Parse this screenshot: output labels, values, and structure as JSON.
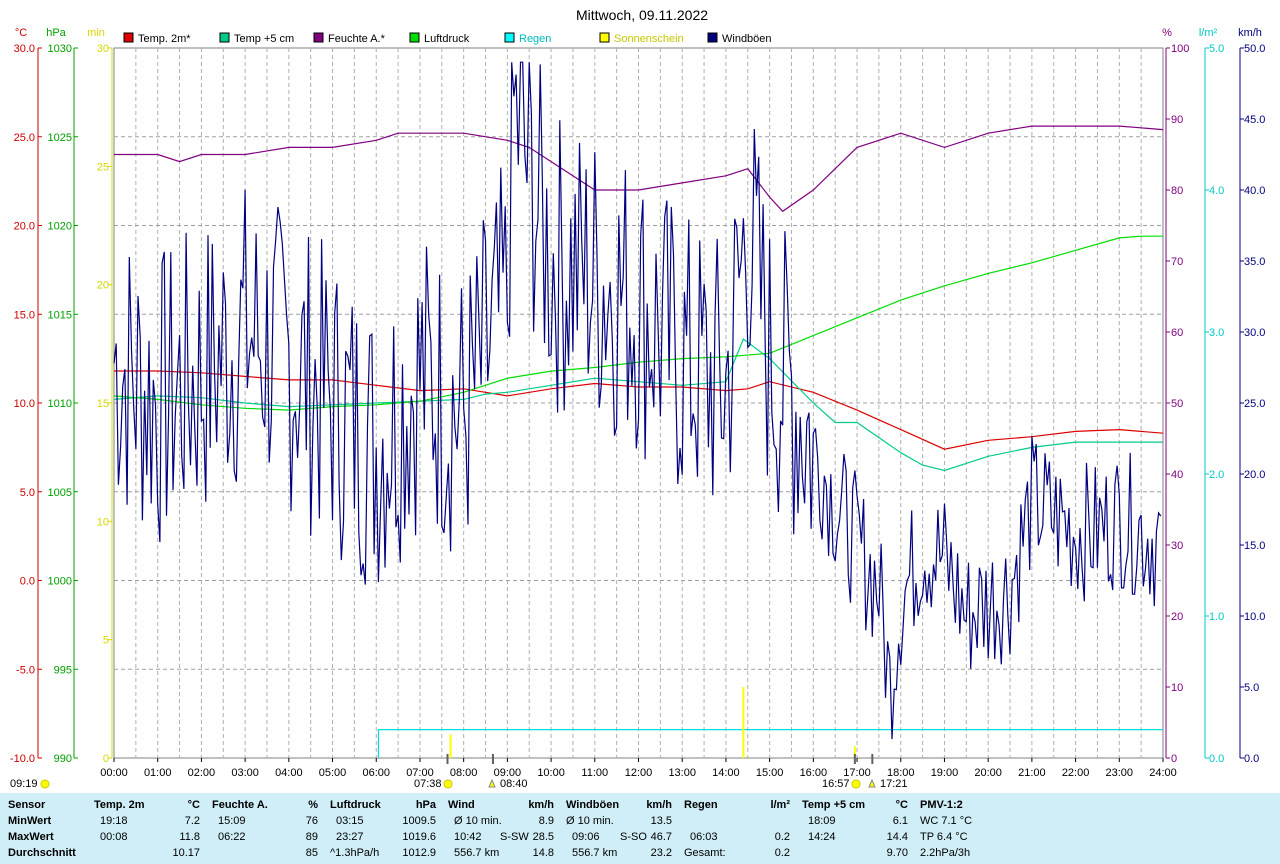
{
  "title": "Mittwoch, 09.11.2022",
  "chart_data": {
    "type": "line",
    "x_ticks": [
      "00:00",
      "01:00",
      "02:00",
      "03:00",
      "04:00",
      "05:00",
      "06:00",
      "07:00",
      "08:00",
      "09:00",
      "10:00",
      "11:00",
      "12:00",
      "13:00",
      "14:00",
      "15:00",
      "16:00",
      "17:00",
      "18:00",
      "19:00",
      "20:00",
      "21:00",
      "22:00",
      "23:00",
      "24:00"
    ],
    "axes": {
      "temp": {
        "label": "°C",
        "color": "#cc0000",
        "ticks": [
          "30.0",
          "25.0",
          "20.0",
          "15.0",
          "10.0",
          "5.0",
          "0.0",
          "-5.0",
          "-10.0"
        ],
        "range": [
          -10,
          30
        ]
      },
      "pressure": {
        "label": "hPa",
        "color": "#00a000",
        "ticks": [
          "1030",
          "1025",
          "1020",
          "1015",
          "1010",
          "1005",
          "1000",
          "995",
          "990"
        ],
        "range": [
          990,
          1030
        ]
      },
      "sunshine": {
        "label": "min",
        "color": "#d8d800",
        "ticks": [
          "30",
          "25",
          "20",
          "15",
          "10",
          "5",
          "0"
        ],
        "range": [
          0,
          30
        ]
      },
      "humidity": {
        "label": "%",
        "color": "#800080",
        "ticks": [
          "100",
          "90",
          "80",
          "70",
          "60",
          "50",
          "40",
          "30",
          "20",
          "10",
          "0"
        ],
        "range": [
          0,
          100
        ]
      },
      "rain": {
        "label": "l/m²",
        "color": "#00c8c8",
        "ticks": [
          "5.0",
          "4.0",
          "3.0",
          "2.0",
          "1.0",
          "0.0"
        ],
        "range": [
          0,
          5
        ]
      },
      "wind": {
        "label": "km/h",
        "color": "#000080",
        "ticks": [
          "50.0",
          "45.0",
          "40.0",
          "35.0",
          "30.0",
          "25.0",
          "20.0",
          "15.0",
          "10.0",
          "5.0",
          "0.0"
        ],
        "range": [
          0,
          50
        ]
      }
    },
    "legend": [
      {
        "label": "Temp. 2m*",
        "color": "#dd0000"
      },
      {
        "label": "Temp +5 cm",
        "color": "#00cc88"
      },
      {
        "label": "Feuchte A.*",
        "color": "#800080"
      },
      {
        "label": "Luftdruck",
        "color": "#00dd00"
      },
      {
        "label": "Regen",
        "color": "#00ffff"
      },
      {
        "label": "Sonnenschein",
        "color": "#ffff00"
      },
      {
        "label": "Windböen",
        "color": "#000080"
      }
    ],
    "series": [
      {
        "name": "Temp. 2m*",
        "axis": "temp",
        "color": "#dd0000",
        "x": [
          0,
          1,
          2,
          3,
          4,
          5,
          6,
          7,
          8,
          9,
          10,
          11,
          12,
          13,
          14,
          14.5,
          15,
          16,
          17,
          18,
          19,
          20,
          21,
          22,
          23,
          24
        ],
        "values": [
          11.8,
          11.8,
          11.7,
          11.5,
          11.3,
          11.3,
          11.0,
          10.7,
          10.8,
          10.4,
          10.8,
          11.1,
          10.9,
          10.9,
          10.7,
          10.8,
          11.2,
          10.6,
          9.6,
          8.5,
          7.4,
          7.9,
          8.1,
          8.4,
          8.5,
          8.3
        ]
      },
      {
        "name": "Temp +5 cm",
        "axis": "temp",
        "color": "#00cc88",
        "x": [
          0,
          1,
          2,
          3,
          4,
          5,
          6,
          7,
          8,
          8.5,
          9,
          10,
          11,
          12,
          13,
          14,
          14.4,
          15,
          16,
          16.5,
          17,
          18,
          18.5,
          19,
          20,
          21,
          22,
          23,
          24
        ],
        "values": [
          10.2,
          10.4,
          10.3,
          10.0,
          9.8,
          9.9,
          10.0,
          10.1,
          10.2,
          10.5,
          10.6,
          11.0,
          11.4,
          11.2,
          11.0,
          11.2,
          13.6,
          12.5,
          10.0,
          8.9,
          8.9,
          7.2,
          6.5,
          6.2,
          7.0,
          7.5,
          7.8,
          7.8,
          7.8
        ]
      },
      {
        "name": "Feuchte A.*",
        "axis": "humidity",
        "color": "#800080",
        "x": [
          0,
          1,
          1.5,
          2,
          3,
          4,
          5,
          6,
          6.5,
          7,
          8,
          9,
          9.5,
          10,
          11,
          12,
          13,
          14,
          14.5,
          15,
          15.3,
          16,
          17,
          18,
          19,
          20,
          21,
          22,
          23,
          24
        ],
        "values": [
          85,
          85,
          84,
          85,
          85,
          86,
          86,
          87,
          88,
          88,
          88,
          87,
          86,
          84,
          80,
          80,
          81,
          82,
          83,
          79,
          77,
          80,
          86,
          88,
          86,
          88,
          89,
          89,
          89,
          88.5
        ]
      },
      {
        "name": "Luftdruck",
        "axis": "pressure",
        "color": "#00dd00",
        "x": [
          0,
          1,
          2,
          3,
          4,
          5,
          6,
          7,
          8,
          9,
          10,
          11,
          12,
          13,
          14,
          15,
          16,
          17,
          18,
          19,
          20,
          21,
          22,
          23,
          23.5,
          24
        ],
        "values": [
          1010.4,
          1010.2,
          1009.9,
          1009.7,
          1009.6,
          1009.8,
          1009.9,
          1010.1,
          1010.6,
          1011.4,
          1011.8,
          1012.0,
          1012.3,
          1012.5,
          1012.6,
          1012.8,
          1013.8,
          1014.8,
          1015.8,
          1016.6,
          1017.3,
          1017.9,
          1018.6,
          1019.3,
          1019.4,
          1019.4
        ]
      },
      {
        "name": "Windböen",
        "axis": "wind",
        "color": "#000080",
        "x": [
          0,
          1,
          2,
          3,
          4,
          5,
          6,
          7,
          8,
          9,
          9.1,
          10,
          11,
          12,
          13,
          14,
          14.5,
          15,
          15.5,
          16,
          16.5,
          17,
          17.5,
          17.75,
          18,
          18.5,
          19,
          19.5,
          20,
          20.5,
          21,
          21.5,
          22,
          22.5,
          23,
          23.5,
          24
        ],
        "values": [
          28,
          25,
          27,
          30,
          28,
          25,
          22,
          27,
          24,
          32,
          46,
          35,
          34,
          32,
          28,
          26,
          38,
          28,
          26,
          22,
          18,
          15,
          12,
          5,
          11,
          15,
          14,
          10,
          11,
          12,
          18,
          17,
          16,
          16,
          17,
          16,
          15
        ]
      }
    ],
    "rain_events": [
      {
        "time": "06:03",
        "value": "0.2"
      }
    ],
    "markers": [
      {
        "label": "09:19",
        "symbol": "sun"
      },
      {
        "label": "07:38",
        "symbol": "sun"
      },
      {
        "label": "08:40",
        "symbol": "moon"
      },
      {
        "label": "16:57",
        "symbol": "sun"
      },
      {
        "label": "17:21",
        "symbol": "moon"
      }
    ]
  },
  "stats": {
    "rows": {
      "row1": "Sensor",
      "row2": "MinWert",
      "row3": "MaxWert",
      "row4": "Durchschnitt"
    },
    "temp2m": {
      "h1": "Temp. 2m",
      "h2": "°C",
      "min_t": "19:18",
      "min_v": "7.2",
      "max_t": "00:08",
      "max_v": "11.8",
      "avg": "10.17"
    },
    "humidity": {
      "h1": "Feuchte A.",
      "h2": "%",
      "min_t": "15:09",
      "min_v": "76",
      "max_t": "06:22",
      "max_v": "89",
      "avg": "85"
    },
    "pressure": {
      "h1": "Luftdruck",
      "h2": "hPa",
      "min_t": "03:15",
      "min_v": "1009.5",
      "max_t": "23:27",
      "max_v": "1019.6",
      "trend": "^1.3hPa/h",
      "avg": "1012.9"
    },
    "wind": {
      "h1": "Wind",
      "h2": "km/h",
      "min_l": "Ø 10 min.",
      "min_v": "8.9",
      "max_t": "10:42",
      "max_dir": "S-SW",
      "max_v": "28.5",
      "dist": "556.7 km",
      "avg": "14.8"
    },
    "gusts": {
      "h1": "Windböen",
      "h2": "km/h",
      "min_l": "Ø 10 min.",
      "min_v": "13.5",
      "max_t": "09:06",
      "max_dir": "S-SO",
      "max_v": "46.7",
      "dist": "556.7 km",
      "avg": "23.2"
    },
    "rain": {
      "h1": "Regen",
      "h2": "l/m²",
      "max_t": "06:03",
      "max_v": "0.2",
      "total_l": "Gesamt:",
      "total_v": "0.2"
    },
    "temp5": {
      "h1": "Temp +5 cm",
      "h2": "°C",
      "min_t": "18:09",
      "min_v": "6.1",
      "max_t": "14:24",
      "max_v": "14.4",
      "avg": "9.70"
    },
    "pmv": {
      "h1": "PMV-1:2",
      "l2": "WC 7.1 °C",
      "l3": "TP 6.4 °C",
      "l4": "2.2hPa/3h"
    }
  }
}
